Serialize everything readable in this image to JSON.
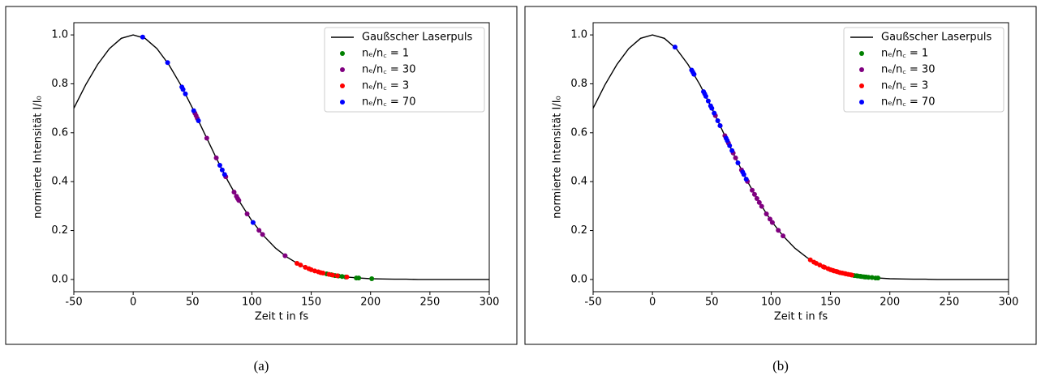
{
  "chart_data": [
    {
      "type": "scatter",
      "caption": "(a)",
      "xlabel": "Zeit t in fs",
      "ylabel": "normierte Intensität I/I₀",
      "xlim": [
        -50,
        300
      ],
      "ylim": [
        -0.05,
        1.05
      ],
      "xticks": [
        -50,
        0,
        50,
        100,
        150,
        200,
        250,
        300
      ],
      "yticks": [
        {
          "value": 0,
          "label": "0.0"
        },
        0.2,
        0.4,
        0.6,
        0.8,
        {
          "value": 1,
          "label": "1.0"
        }
      ],
      "legend": "upper right",
      "curve": {
        "name": "Gaußscher Laserpuls",
        "color": "#000000",
        "x": [
          -50,
          -40,
          -30,
          -20,
          -10,
          0,
          10,
          20,
          30,
          40,
          50,
          60,
          70,
          80,
          90,
          100,
          110,
          120,
          130,
          140,
          150,
          160,
          170,
          180,
          190,
          200,
          210,
          220,
          230,
          240,
          250,
          260,
          270,
          280,
          290,
          300
        ],
        "values": [
          0.7,
          0.796,
          0.879,
          0.944,
          0.986,
          1,
          0.986,
          0.944,
          0.879,
          0.796,
          0.7,
          0.598,
          0.497,
          0.401,
          0.315,
          0.24,
          0.178,
          0.128,
          0.09,
          0.061,
          0.04,
          0.026,
          0.016,
          0.01,
          0.006,
          0.003,
          0.002,
          0.001,
          0.001,
          0,
          0,
          0,
          0,
          0,
          0,
          0
        ]
      },
      "series": [
        {
          "name": "nₑ/n꜀ = 1",
          "color": "#008000",
          "x": [
            163,
            167,
            170,
            173,
            176,
            179,
            188,
            190,
            201
          ],
          "values": [
            0.023,
            0.019,
            0.016,
            0.014,
            0.012,
            0.01,
            0.006,
            0.006,
            0.003
          ]
        },
        {
          "name": "nₑ/n꜀ = 30",
          "color": "#800080",
          "x": [
            52,
            53,
            54,
            62,
            70,
            78,
            85,
            87,
            88,
            89,
            96,
            106,
            109,
            128
          ],
          "values": [
            0.68,
            0.67,
            0.659,
            0.578,
            0.497,
            0.42,
            0.357,
            0.34,
            0.331,
            0.323,
            0.268,
            0.201,
            0.184,
            0.097
          ]
        },
        {
          "name": "nₑ/n꜀ = 3",
          "color": "#ff0000",
          "x": [
            138,
            141,
            145,
            148,
            150,
            153,
            156,
            158,
            160,
            165,
            168,
            172,
            180
          ],
          "values": [
            0.066,
            0.059,
            0.05,
            0.044,
            0.04,
            0.035,
            0.031,
            0.028,
            0.026,
            0.021,
            0.018,
            0.015,
            0.01
          ]
        },
        {
          "name": "nₑ/n꜀ = 70",
          "color": "#0000ff",
          "x": [
            8,
            29,
            41,
            42,
            44,
            51,
            55,
            73,
            75,
            77,
            101
          ],
          "values": [
            0.991,
            0.887,
            0.787,
            0.777,
            0.759,
            0.69,
            0.649,
            0.467,
            0.448,
            0.429,
            0.233
          ]
        }
      ]
    },
    {
      "type": "scatter",
      "caption": "(b)",
      "xlabel": "Zeit t in fs",
      "ylabel": "normierte Intensität I/I₀",
      "xlim": [
        -50,
        300
      ],
      "ylim": [
        -0.05,
        1.05
      ],
      "xticks": [
        -50,
        0,
        50,
        100,
        150,
        200,
        250,
        300
      ],
      "yticks": [
        {
          "value": 0,
          "label": "0.0"
        },
        0.2,
        0.4,
        0.6,
        0.8,
        {
          "value": 1,
          "label": "1.0"
        }
      ],
      "legend": "upper right",
      "curve": {
        "name": "Gaußscher Laserpuls",
        "color": "#000000",
        "x": [
          -50,
          -40,
          -30,
          -20,
          -10,
          0,
          10,
          20,
          30,
          40,
          50,
          60,
          70,
          80,
          90,
          100,
          110,
          120,
          130,
          140,
          150,
          160,
          170,
          180,
          190,
          200,
          210,
          220,
          230,
          240,
          250,
          260,
          270,
          280,
          290,
          300
        ],
        "values": [
          0.7,
          0.796,
          0.879,
          0.944,
          0.986,
          1,
          0.986,
          0.944,
          0.879,
          0.796,
          0.7,
          0.598,
          0.497,
          0.401,
          0.315,
          0.24,
          0.178,
          0.128,
          0.09,
          0.061,
          0.04,
          0.026,
          0.016,
          0.01,
          0.006,
          0.003,
          0.002,
          0.001,
          0.001,
          0,
          0,
          0,
          0,
          0,
          0,
          0
        ]
      },
      "series": [
        {
          "name": "nₑ/n꜀ = 1",
          "color": "#008000",
          "x": [
            170,
            172,
            173,
            175,
            176,
            178,
            179,
            180,
            182,
            185,
            188,
            190
          ],
          "values": [
            0.016,
            0.015,
            0.014,
            0.013,
            0.012,
            0.011,
            0.01,
            0.01,
            0.009,
            0.008,
            0.006,
            0.006
          ]
        },
        {
          "name": "nₑ/n꜀ = 30",
          "color": "#800080",
          "x": [
            35,
            53,
            57,
            61,
            64,
            68,
            70,
            75,
            80,
            84,
            86,
            88,
            90,
            92,
            96,
            99,
            101,
            106,
            110
          ],
          "values": [
            0.839,
            0.67,
            0.629,
            0.588,
            0.558,
            0.517,
            0.497,
            0.448,
            0.401,
            0.365,
            0.348,
            0.331,
            0.315,
            0.299,
            0.268,
            0.247,
            0.233,
            0.201,
            0.178
          ]
        },
        {
          "name": "nₑ/n꜀ = 3",
          "color": "#ff0000",
          "x": [
            133,
            136,
            138,
            141,
            144,
            145,
            148,
            150,
            152,
            153,
            155,
            156,
            158,
            160,
            162,
            163,
            165,
            167,
            168
          ],
          "values": [
            0.08,
            0.071,
            0.066,
            0.059,
            0.052,
            0.05,
            0.044,
            0.04,
            0.037,
            0.035,
            0.033,
            0.031,
            0.028,
            0.026,
            0.024,
            0.023,
            0.021,
            0.019,
            0.018
          ]
        },
        {
          "name": "nₑ/n꜀ = 70",
          "color": "#0000ff",
          "x": [
            19,
            33,
            34,
            35,
            43,
            44,
            45,
            47,
            49,
            50,
            52,
            55,
            57,
            62,
            63,
            65,
            67,
            72,
            76,
            77,
            79
          ],
          "values": [
            0.95,
            0.856,
            0.848,
            0.839,
            0.768,
            0.759,
            0.749,
            0.73,
            0.71,
            0.7,
            0.68,
            0.649,
            0.629,
            0.578,
            0.568,
            0.547,
            0.527,
            0.477,
            0.439,
            0.429,
            0.41
          ]
        }
      ]
    }
  ]
}
